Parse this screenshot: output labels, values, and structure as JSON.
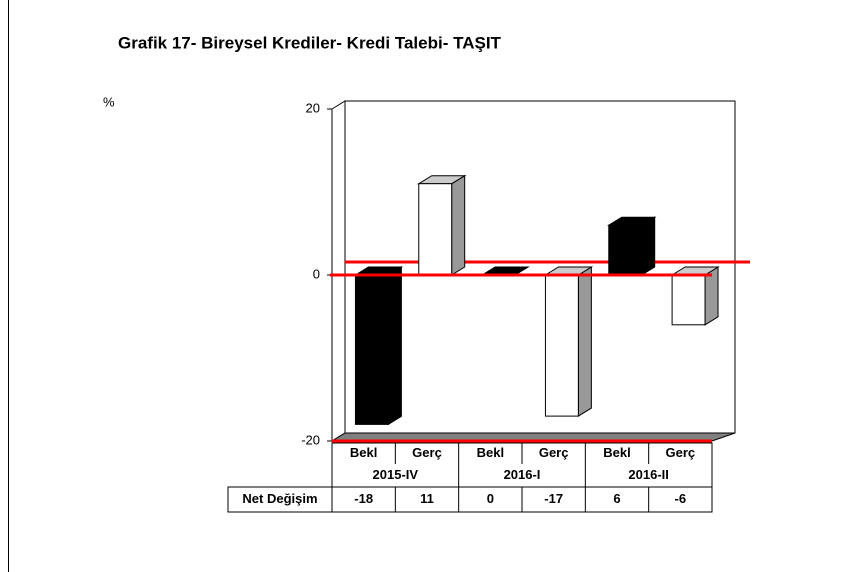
{
  "chart_data": {
    "type": "bar3d",
    "title": "Grafik 17- Bireysel Krediler- Kredi Talebi- TAŞIT",
    "y_label": "%",
    "categories": [
      "Bekl",
      "Gerç",
      "Bekl",
      "Gerç",
      "Bekl",
      "Gerç"
    ],
    "groups": [
      "2015-IV",
      "2016-I",
      "2016-II"
    ],
    "table_row_label": "Net Değişim",
    "values": [
      -18,
      11,
      0,
      -17,
      6,
      -6
    ],
    "colors": [
      "#000000",
      "#ffffff",
      "#000000",
      "#ffffff",
      "#000000",
      "#ffffff"
    ],
    "ylim": [
      -20,
      20
    ],
    "yticks": [
      20,
      0,
      -20
    ],
    "zero_line_color": "#ff0000"
  }
}
